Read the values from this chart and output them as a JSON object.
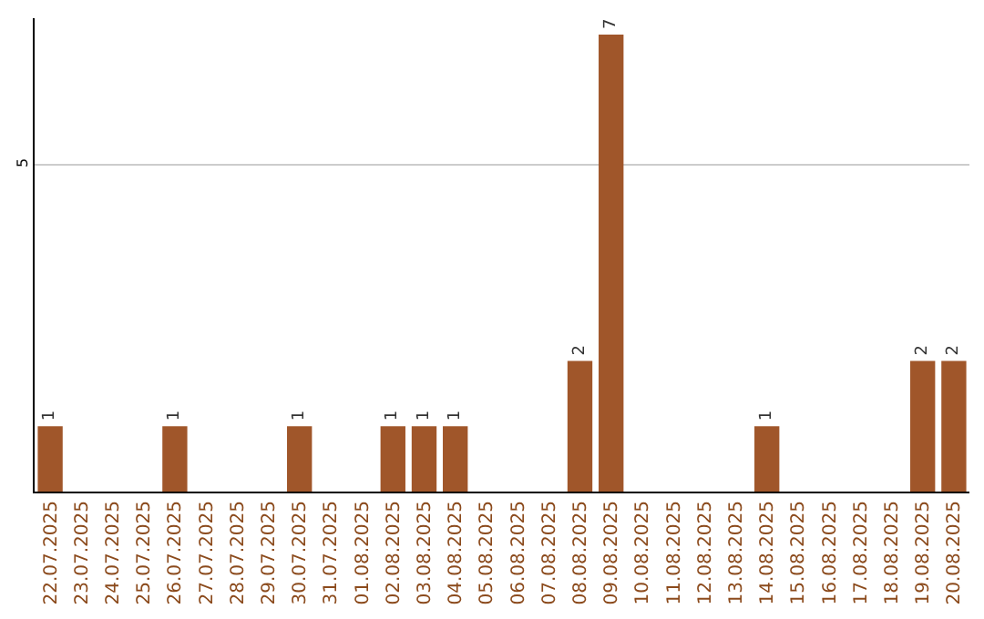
{
  "chart_data": {
    "type": "bar",
    "categories": [
      "22.07.2025",
      "23.07.2025",
      "24.07.2025",
      "25.07.2025",
      "26.07.2025",
      "27.07.2025",
      "28.07.2025",
      "29.07.2025",
      "30.07.2025",
      "31.07.2025",
      "01.08.2025",
      "02.08.2025",
      "03.08.2025",
      "04.08.2025",
      "05.08.2025",
      "06.08.2025",
      "07.08.2025",
      "08.08.2025",
      "09.08.2025",
      "10.08.2025",
      "11.08.2025",
      "12.08.2025",
      "13.08.2025",
      "14.08.2025",
      "15.08.2025",
      "16.08.2025",
      "17.08.2025",
      "18.08.2025",
      "19.08.2025",
      "20.08.2025"
    ],
    "values": [
      1,
      0,
      0,
      0,
      1,
      0,
      0,
      0,
      1,
      0,
      0,
      1,
      1,
      1,
      0,
      0,
      0,
      2,
      7,
      0,
      0,
      0,
      0,
      1,
      0,
      0,
      0,
      0,
      2,
      2
    ],
    "value_labels": [
      "1",
      null,
      null,
      null,
      "1",
      null,
      null,
      null,
      "1",
      null,
      null,
      "1",
      "1",
      "1",
      null,
      null,
      null,
      "2",
      "7",
      null,
      null,
      null,
      null,
      "1",
      null,
      null,
      null,
      null,
      "2",
      "2"
    ],
    "color": "#a0562a",
    "ylim": [
      0,
      7.25
    ],
    "yticks": [
      5
    ],
    "grid": "y"
  }
}
